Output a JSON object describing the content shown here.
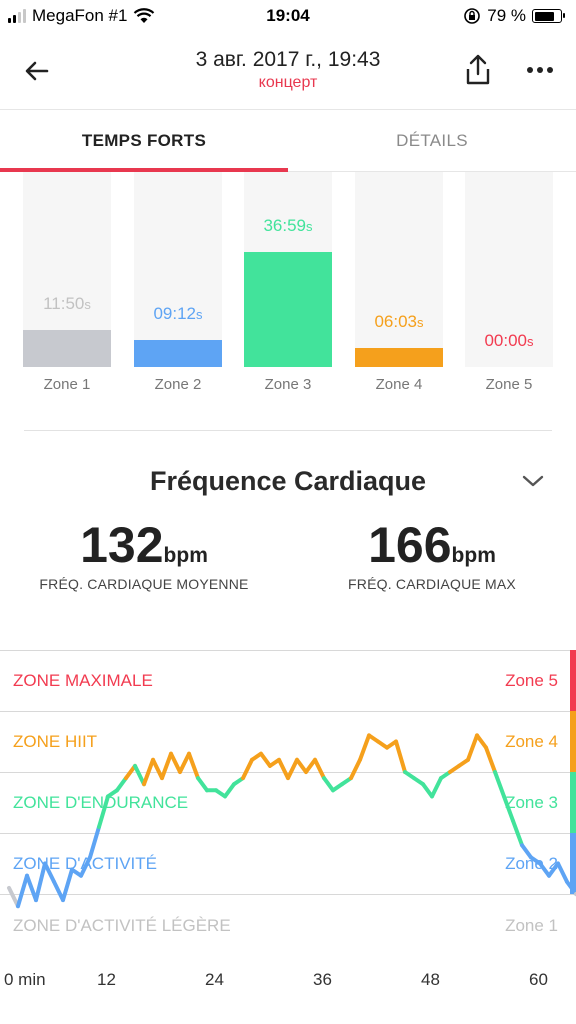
{
  "status_bar": {
    "carrier": "MegaFon #1",
    "time": "19:04",
    "battery": "79 %",
    "battery_level": 0.79
  },
  "header": {
    "title": "3 авг. 2017 г., 19:43",
    "subtitle": "концерт",
    "accent": "#e8384f"
  },
  "tabs": [
    {
      "label": "TEMPS FORTS",
      "active": true
    },
    {
      "label": "DÉTAILS",
      "active": false
    }
  ],
  "zones": [
    {
      "label": "Zone 1",
      "value": "11:50",
      "unit": "s",
      "color": "#c7c9cf",
      "fill": 0.19,
      "text_color": "#c2c2c2"
    },
    {
      "label": "Zone 2",
      "value": "09:12",
      "unit": "s",
      "color": "#5ea4f4",
      "fill": 0.14,
      "text_color": "#5ea4f4"
    },
    {
      "label": "Zone 3",
      "value": "36:59",
      "unit": "s",
      "color": "#42e39b",
      "fill": 0.59,
      "text_color": "#42e39b"
    },
    {
      "label": "Zone 4",
      "value": "06:03",
      "unit": "s",
      "color": "#f5a01c",
      "fill": 0.1,
      "text_color": "#f5a01c"
    },
    {
      "label": "Zone 5",
      "value": "00:00",
      "unit": "s",
      "color": "#f23b50",
      "fill": 0.0,
      "text_color": "#f23b50"
    }
  ],
  "heart_rate": {
    "title": "Fréquence Cardiaque",
    "avg_value": "132",
    "avg_unit": "bpm",
    "avg_label": "FRÉQ. CARDIAQUE MOYENNE",
    "max_value": "166",
    "max_unit": "bpm",
    "max_label": "FRÉQ. CARDIAQUE MAX"
  },
  "chart_bands": [
    {
      "label": "ZONE MAXIMALE",
      "zone": "Zone 5",
      "color": "#f23b50",
      "side_color": "#f23b50"
    },
    {
      "label": "ZONE HIIT",
      "zone": "Zone 4",
      "color": "#f5a01c",
      "side_color": "#f5a01c"
    },
    {
      "label": "ZONE D'ENDURANCE",
      "zone": "Zone 3",
      "color": "#42e39b",
      "side_color": "#42e39b"
    },
    {
      "label": "ZONE D'ACTIVITÉ",
      "zone": "Zone 2",
      "color": "#5ea4f4",
      "side_color": "#5ea4f4"
    },
    {
      "label": "ZONE D'ACTIVITÉ LÉGÈRE",
      "zone": "Zone 1",
      "color": "#c2c2c2",
      "side_color": "#ffffff"
    }
  ],
  "chart_data": {
    "type": "line",
    "x_ticks": [
      "0 min",
      "12",
      "24",
      "36",
      "48",
      "60"
    ],
    "x_tick_values": [
      0,
      12,
      24,
      36,
      48,
      60
    ],
    "xlim": [
      0,
      64
    ],
    "series": [
      {
        "x": [
          0,
          1,
          2,
          3,
          4,
          5,
          6,
          7,
          8,
          9,
          10,
          11,
          12,
          13,
          14,
          15,
          16,
          17,
          18,
          19,
          20,
          21,
          22,
          23,
          24,
          25,
          26,
          27,
          28,
          29,
          30,
          31,
          32,
          33,
          34,
          35,
          36,
          37,
          38,
          39,
          40,
          41,
          42,
          43,
          44,
          45,
          46,
          47,
          48,
          49,
          50,
          51,
          52,
          53,
          54,
          55,
          56,
          57,
          58,
          59,
          60,
          61,
          62,
          63,
          64
        ],
        "y": [
          1.1,
          0.8,
          1.3,
          0.9,
          1.5,
          1.2,
          0.9,
          1.4,
          1.3,
          1.6,
          2.1,
          2.6,
          2.7,
          2.9,
          3.1,
          2.8,
          3.2,
          2.9,
          3.3,
          3.0,
          3.3,
          2.9,
          2.7,
          2.7,
          2.6,
          2.8,
          2.9,
          3.2,
          3.3,
          3.1,
          3.2,
          2.9,
          3.2,
          3.0,
          3.2,
          2.9,
          2.7,
          2.8,
          2.9,
          3.2,
          3.6,
          3.5,
          3.4,
          3.5,
          3.0,
          2.9,
          2.8,
          2.6,
          2.9,
          3.0,
          3.1,
          3.2,
          3.6,
          3.4,
          3.0,
          2.6,
          2.2,
          1.8,
          1.6,
          1.5,
          1.3,
          1.5,
          1.2,
          1.0,
          0.9
        ]
      }
    ],
    "ylim": [
      0,
      5
    ],
    "y_note_zones": [
      "Zone 1",
      "Zone 2",
      "Zone 3",
      "Zone 4",
      "Zone 5"
    ]
  }
}
